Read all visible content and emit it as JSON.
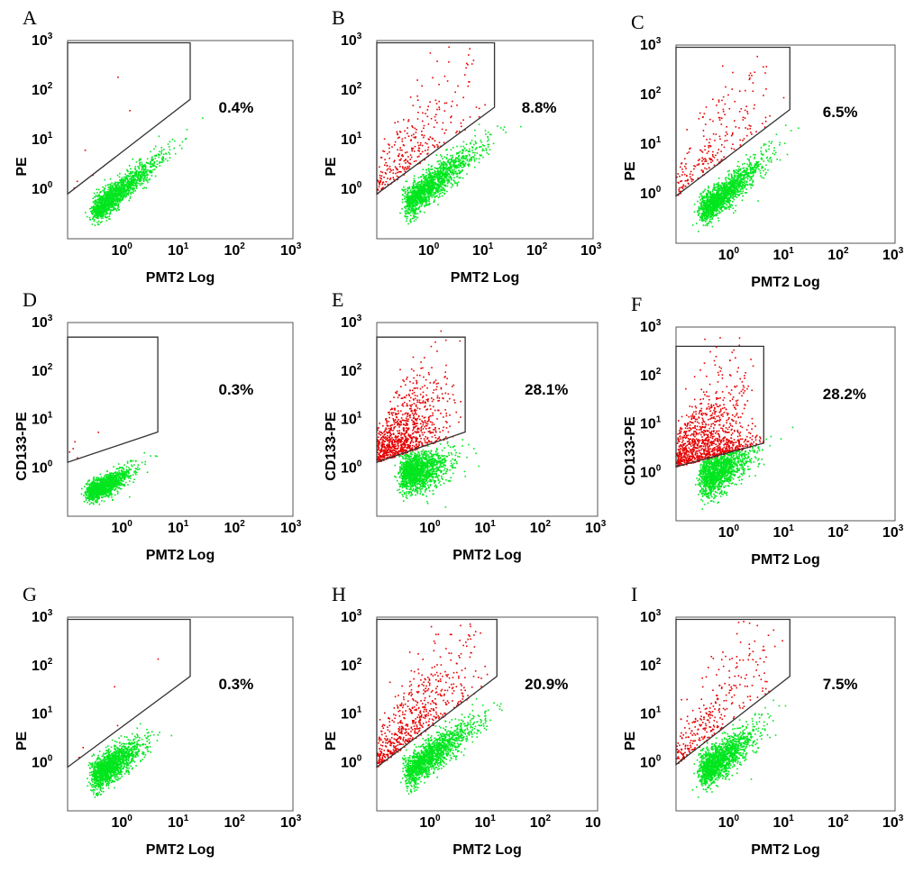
{
  "figure": {
    "point_colors": {
      "negative": "#00e61e",
      "positive": "#e60000",
      "gate": "#333333"
    }
  },
  "chart_data": [
    {
      "panel": "A",
      "type": "scatter",
      "xlabel": "PMT2 Log",
      "ylabel": "PE",
      "xscale": "log",
      "yscale": "log",
      "xlim": [
        0.1,
        1000
      ],
      "ylim": [
        0.1,
        1000
      ],
      "x_ticks": [
        {
          "base": "10",
          "exp": "0"
        },
        {
          "base": "10",
          "exp": "1"
        },
        {
          "base": "10",
          "exp": "2"
        },
        {
          "base": "10",
          "exp": "3"
        }
      ],
      "y_ticks": [
        {
          "base": "10",
          "exp": "0"
        },
        {
          "base": "10",
          "exp": "1"
        },
        {
          "base": "10",
          "exp": "2"
        },
        {
          "base": "10",
          "exp": "3"
        }
      ],
      "gate_polygon": [
        [
          0.1,
          0.8
        ],
        [
          15,
          65
        ],
        [
          15,
          900
        ],
        [
          0.1,
          900
        ]
      ],
      "gated_percent": 0.4,
      "gated_label": "0.4%"
    },
    {
      "panel": "B",
      "type": "scatter",
      "xlabel": "PMT2 Log",
      "ylabel": "PE",
      "xscale": "log",
      "yscale": "log",
      "xlim": [
        0.1,
        1000
      ],
      "ylim": [
        0.1,
        1000
      ],
      "x_ticks": [
        {
          "base": "10",
          "exp": "0"
        },
        {
          "base": "10",
          "exp": "1"
        },
        {
          "base": "10",
          "exp": "2"
        },
        {
          "base": "10",
          "exp": "3"
        }
      ],
      "y_ticks": [
        {
          "base": "10",
          "exp": "0"
        },
        {
          "base": "10",
          "exp": "1"
        },
        {
          "base": "10",
          "exp": "2"
        },
        {
          "base": "10",
          "exp": "3"
        }
      ],
      "gate_polygon": [
        [
          0.1,
          0.8
        ],
        [
          15,
          45
        ],
        [
          15,
          900
        ],
        [
          0.1,
          900
        ]
      ],
      "gated_percent": 8.8,
      "gated_label": "8.8%"
    },
    {
      "panel": "C",
      "type": "scatter",
      "xlabel": "PMT2 Log",
      "ylabel": "PE",
      "xscale": "log",
      "yscale": "log",
      "xlim": [
        0.1,
        1000
      ],
      "ylim": [
        0.1,
        1000
      ],
      "x_ticks": [
        {
          "base": "10",
          "exp": "0"
        },
        {
          "base": "10",
          "exp": "1"
        },
        {
          "base": "10",
          "exp": "2"
        },
        {
          "base": "10",
          "exp": "3"
        }
      ],
      "y_ticks": [
        {
          "base": "10",
          "exp": "0"
        },
        {
          "base": "10",
          "exp": "1"
        },
        {
          "base": "10",
          "exp": "2"
        },
        {
          "base": "10",
          "exp": "3"
        }
      ],
      "gate_polygon": [
        [
          0.1,
          0.9
        ],
        [
          12,
          50
        ],
        [
          12,
          900
        ],
        [
          0.1,
          900
        ]
      ],
      "gated_percent": 6.5,
      "gated_label": "6.5%"
    },
    {
      "panel": "D",
      "type": "scatter",
      "xlabel": "PMT2 Log",
      "ylabel": "CD133-PE",
      "xscale": "log",
      "yscale": "log",
      "xlim": [
        0.1,
        1000
      ],
      "ylim": [
        0.1,
        1000
      ],
      "x_ticks": [
        {
          "base": "10",
          "exp": "0"
        },
        {
          "base": "10",
          "exp": "1"
        },
        {
          "base": "10",
          "exp": "2"
        },
        {
          "base": "10",
          "exp": "3"
        }
      ],
      "y_ticks": [
        {
          "base": "10",
          "exp": "0"
        },
        {
          "base": "10",
          "exp": "1"
        },
        {
          "base": "10",
          "exp": "2"
        },
        {
          "base": "10",
          "exp": "3"
        }
      ],
      "gate_polygon": [
        [
          0.1,
          1.3
        ],
        [
          4,
          5.5
        ],
        [
          4,
          500
        ],
        [
          0.1,
          500
        ]
      ],
      "gated_percent": 0.3,
      "gated_label": "0.3%"
    },
    {
      "panel": "E",
      "type": "scatter",
      "xlabel": "PMT2 Log",
      "ylabel": "CD133-PE",
      "xscale": "log",
      "yscale": "log",
      "xlim": [
        0.1,
        1000
      ],
      "ylim": [
        0.1,
        1000
      ],
      "x_ticks": [
        {
          "base": "10",
          "exp": "0"
        },
        {
          "base": "10",
          "exp": "1"
        },
        {
          "base": "10",
          "exp": "2"
        },
        {
          "base": "10",
          "exp": "3"
        }
      ],
      "y_ticks": [
        {
          "base": "10",
          "exp": "0"
        },
        {
          "base": "10",
          "exp": "1"
        },
        {
          "base": "10",
          "exp": "2"
        },
        {
          "base": "10",
          "exp": "3"
        }
      ],
      "gate_polygon": [
        [
          0.1,
          1.3
        ],
        [
          4,
          5.5
        ],
        [
          4,
          500
        ],
        [
          0.1,
          500
        ]
      ],
      "gated_percent": 28.1,
      "gated_label": "28.1%"
    },
    {
      "panel": "F",
      "type": "scatter",
      "xlabel": "PMT2 Log",
      "ylabel": "CD133-PE",
      "xscale": "log",
      "yscale": "log",
      "xlim": [
        0.1,
        1000
      ],
      "ylim": [
        0.1,
        1000
      ],
      "x_ticks": [
        {
          "base": "10",
          "exp": "0"
        },
        {
          "base": "10",
          "exp": "1"
        },
        {
          "base": "10",
          "exp": "2"
        },
        {
          "base": "10",
          "exp": "3"
        }
      ],
      "y_ticks": [
        {
          "base": "10",
          "exp": "0"
        },
        {
          "base": "10",
          "exp": "1"
        },
        {
          "base": "10",
          "exp": "2"
        },
        {
          "base": "10",
          "exp": "3"
        }
      ],
      "gate_polygon": [
        [
          0.1,
          1.3
        ],
        [
          4,
          4
        ],
        [
          4,
          400
        ],
        [
          0.1,
          400
        ]
      ],
      "gated_percent": 28.2,
      "gated_label": "28.2%"
    },
    {
      "panel": "G",
      "type": "scatter",
      "xlabel": "PMT2 Log",
      "ylabel": "PE",
      "xscale": "log",
      "yscale": "log",
      "xlim": [
        0.1,
        1000
      ],
      "ylim": [
        0.1,
        1000
      ],
      "x_ticks": [
        {
          "base": "10",
          "exp": "0"
        },
        {
          "base": "10",
          "exp": "1"
        },
        {
          "base": "10",
          "exp": "2"
        },
        {
          "base": "10",
          "exp": "3"
        }
      ],
      "y_ticks": [
        {
          "base": "10",
          "exp": "0"
        },
        {
          "base": "10",
          "exp": "1"
        },
        {
          "base": "10",
          "exp": "2"
        },
        {
          "base": "10",
          "exp": "3"
        }
      ],
      "gate_polygon": [
        [
          0.1,
          0.8
        ],
        [
          15,
          60
        ],
        [
          15,
          900
        ],
        [
          0.1,
          900
        ]
      ],
      "gated_percent": 0.3,
      "gated_label": "0.3%"
    },
    {
      "panel": "H",
      "type": "scatter",
      "xlabel": "PMT2 Log",
      "ylabel": "PE",
      "xscale": "log",
      "yscale": "log",
      "xlim": [
        0.1,
        1000
      ],
      "ylim": [
        0.1,
        1000
      ],
      "x_ticks": [
        {
          "base": "10",
          "exp": "0"
        },
        {
          "base": "10",
          "exp": "1"
        },
        {
          "base": "10",
          "exp": "2"
        },
        {
          "base": "10",
          "exp": "3",
          "display": "10"
        }
      ],
      "y_ticks": [
        {
          "base": "10",
          "exp": "0"
        },
        {
          "base": "10",
          "exp": "1"
        },
        {
          "base": "10",
          "exp": "2"
        },
        {
          "base": "10",
          "exp": "3"
        }
      ],
      "gate_polygon": [
        [
          0.1,
          0.8
        ],
        [
          15,
          60
        ],
        [
          15,
          900
        ],
        [
          0.1,
          900
        ]
      ],
      "gated_percent": 20.9,
      "gated_label": "20.9%"
    },
    {
      "panel": "I",
      "type": "scatter",
      "xlabel": "PMT2 Log",
      "ylabel": "PE",
      "xscale": "log",
      "yscale": "log",
      "xlim": [
        0.1,
        1000
      ],
      "ylim": [
        0.1,
        1000
      ],
      "x_ticks": [
        {
          "base": "10",
          "exp": "0"
        },
        {
          "base": "10",
          "exp": "1"
        },
        {
          "base": "10",
          "exp": "2"
        },
        {
          "base": "10",
          "exp": "3"
        }
      ],
      "y_ticks": [
        {
          "base": "10",
          "exp": "0"
        },
        {
          "base": "10",
          "exp": "1"
        },
        {
          "base": "10",
          "exp": "2"
        },
        {
          "base": "10",
          "exp": "3"
        }
      ],
      "gate_polygon": [
        [
          0.1,
          0.9
        ],
        [
          12,
          60
        ],
        [
          12,
          900
        ],
        [
          0.1,
          900
        ]
      ],
      "gated_percent": 7.5,
      "gated_label": "7.5%"
    }
  ]
}
